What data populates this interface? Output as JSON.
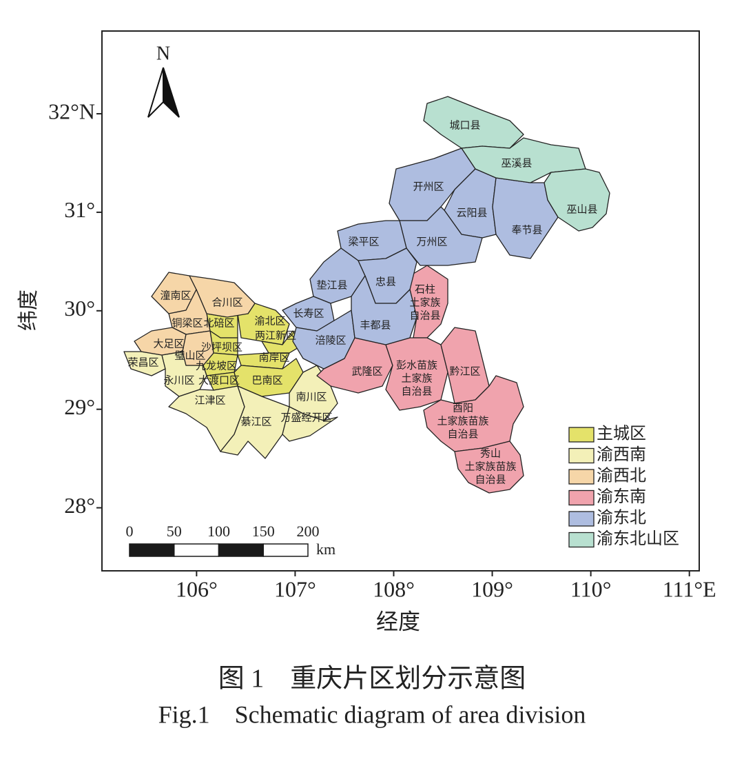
{
  "map": {
    "xlabel": "经度",
    "ylabel": "纬度",
    "xlim": [
      105.04,
      111.1
    ],
    "ylim": [
      27.36,
      32.84
    ],
    "xticks": [
      {
        "value": 106,
        "label": "106°"
      },
      {
        "value": 107,
        "label": "107°"
      },
      {
        "value": 108,
        "label": "108°"
      },
      {
        "value": 109,
        "label": "109°"
      },
      {
        "value": 110,
        "label": "110°"
      },
      {
        "value": 111,
        "label": "111°E"
      }
    ],
    "yticks": [
      {
        "value": 28,
        "label": "28°"
      },
      {
        "value": 29,
        "label": "29°"
      },
      {
        "value": 30,
        "label": "30°"
      },
      {
        "value": 31,
        "label": "31°"
      },
      {
        "value": 32,
        "label": "32°N"
      }
    ],
    "north": "N",
    "scale_bar": {
      "ticks": [
        0,
        50,
        100,
        150,
        200
      ],
      "unit": "km"
    },
    "regions": [
      {
        "name": "主城区",
        "color": "#e4e26a",
        "districts": [
          {
            "label": [
              "北碚区"
            ]
          },
          {
            "label": [
              "渝北区"
            ]
          },
          {
            "label": [
              "两江新区"
            ]
          },
          {
            "label": [
              "沙坪坝区"
            ]
          },
          {
            "label": [
              "九龙坡区"
            ]
          },
          {
            "label": [
              "南岸区"
            ]
          },
          {
            "label": [
              "大渡口区"
            ]
          },
          {
            "label": [
              "巴南区"
            ]
          }
        ]
      },
      {
        "name": "渝西南",
        "color": "#f3f0b8",
        "districts": [
          {
            "label": [
              "荣昌区"
            ]
          },
          {
            "label": [
              "永川区"
            ]
          },
          {
            "label": [
              "江津区"
            ]
          },
          {
            "label": [
              "南川区"
            ]
          },
          {
            "label": [
              "綦江区"
            ]
          },
          {
            "label": [
              "万盛经开区"
            ]
          }
        ]
      },
      {
        "name": "渝西北",
        "color": "#f6d6a8",
        "districts": [
          {
            "label": [
              "潼南区"
            ]
          },
          {
            "label": [
              "合川区"
            ]
          },
          {
            "label": [
              "铜梁区"
            ]
          },
          {
            "label": [
              "大足区"
            ]
          },
          {
            "label": [
              "璧山区"
            ]
          }
        ]
      },
      {
        "name": "渝东南",
        "color": "#f0a3ad",
        "districts": [
          {
            "label": [
              "石柱",
              "土家族",
              "自治县"
            ]
          },
          {
            "label": [
              "武隆区"
            ]
          },
          {
            "label": [
              "彭水苗族",
              "土家族",
              "自治县"
            ]
          },
          {
            "label": [
              "黔江区"
            ]
          },
          {
            "label": [
              "酉阳",
              "土家族苗族",
              "自治县"
            ]
          },
          {
            "label": [
              "秀山",
              "土家族苗族",
              "自治县"
            ]
          }
        ]
      },
      {
        "name": "渝东北",
        "color": "#aebde0",
        "districts": [
          {
            "label": [
              "开州区"
            ]
          },
          {
            "label": [
              "云阳县"
            ]
          },
          {
            "label": [
              "奉节县"
            ]
          },
          {
            "label": [
              "万州区"
            ]
          },
          {
            "label": [
              "梁平区"
            ]
          },
          {
            "label": [
              "垫江县"
            ]
          },
          {
            "label": [
              "忠县"
            ]
          },
          {
            "label": [
              "长寿区"
            ]
          },
          {
            "label": [
              "涪陵区"
            ]
          },
          {
            "label": [
              "丰都县"
            ]
          }
        ]
      },
      {
        "name": "渝东北山区",
        "color": "#b8e0d0",
        "districts": [
          {
            "label": [
              "城口县"
            ]
          },
          {
            "label": [
              "巫溪县"
            ]
          },
          {
            "label": [
              "巫山县"
            ]
          }
        ]
      }
    ]
  },
  "caption": {
    "zh": "图 1　重庆片区划分示意图",
    "en": "Fig.1　Schematic diagram of area division"
  }
}
